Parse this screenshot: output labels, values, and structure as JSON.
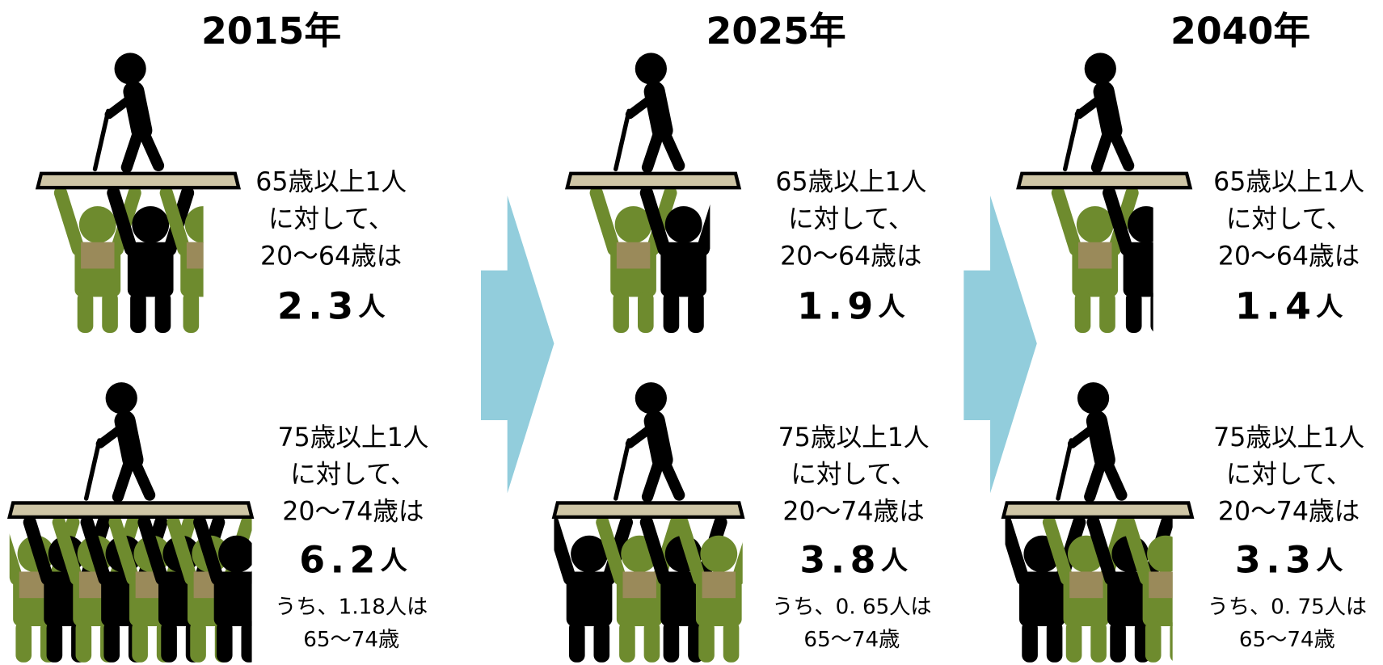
{
  "columns": [
    {
      "year": "2015年",
      "top": {
        "lines": [
          "65歳以上1人",
          "に対して、",
          "20～64歳は"
        ],
        "number": "2.3",
        "unit": "人"
      },
      "bottom": {
        "lines": [
          "75歳以上1人",
          "に対して、",
          "20～74歳は"
        ],
        "number": "6.2",
        "unit": "人",
        "note": [
          "うち、1.18人は",
          "65～74歳"
        ]
      }
    },
    {
      "year": "2025年",
      "top": {
        "lines": [
          "65歳以上1人",
          "に対して、",
          "20～64歳は"
        ],
        "number": "1.9",
        "unit": "人"
      },
      "bottom": {
        "lines": [
          "75歳以上1人",
          "に対して、",
          "20～74歳は"
        ],
        "number": "3.8",
        "unit": "人",
        "note": [
          "うち、0. 65人は",
          "65～74歳"
        ]
      }
    },
    {
      "year": "2040年",
      "top": {
        "lines": [
          "65歳以上1人",
          "に対して、",
          "20～64歳は"
        ],
        "number": "1.4",
        "unit": "人"
      },
      "bottom": {
        "lines": [
          "75歳以上1人",
          "に対して、",
          "20～74歳は"
        ],
        "number": "3.3",
        "unit": "人",
        "note": [
          "うち、0. 75人は",
          "65～74歳"
        ]
      }
    }
  ]
}
